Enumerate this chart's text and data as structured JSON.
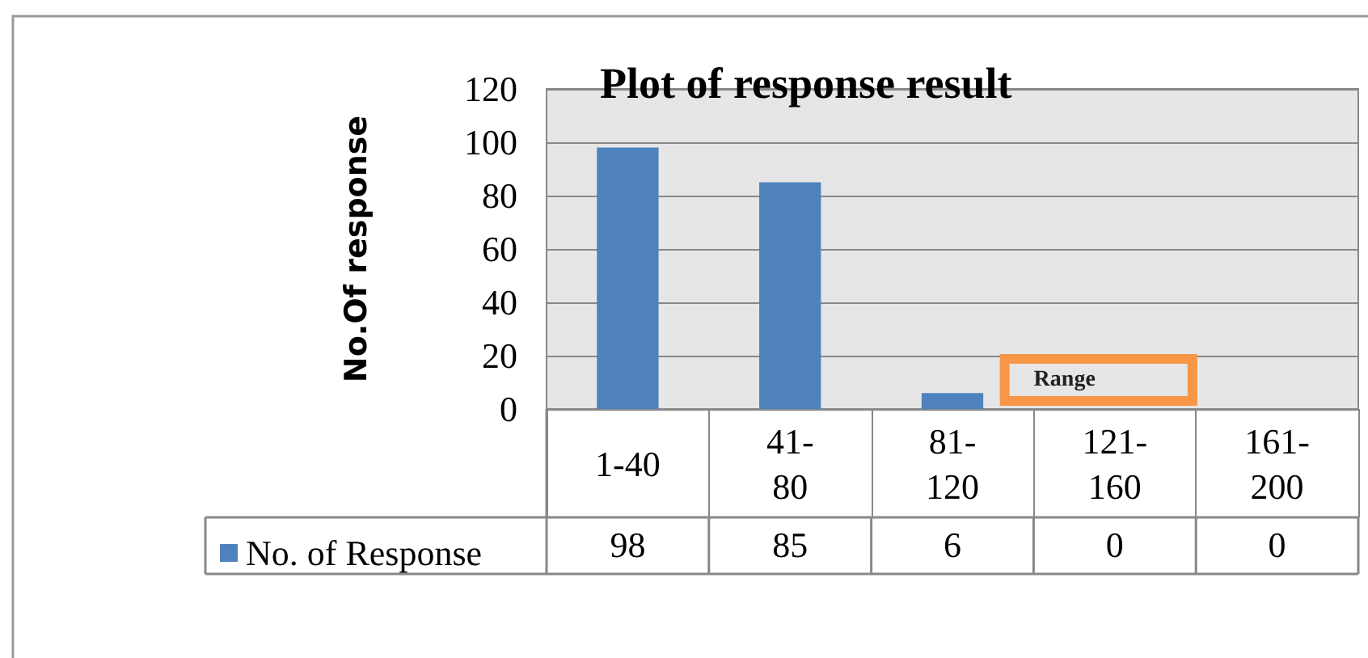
{
  "chart_data": {
    "type": "bar",
    "title": "Plot of response result",
    "xlabel": "Range",
    "ylabel": "No.Of response",
    "categories": [
      "1-40",
      "41-80",
      "81-120",
      "121-160",
      "161-200"
    ],
    "series": [
      {
        "name": "No. of Response",
        "color": "#4f81bd",
        "values": [
          98,
          85,
          6,
          0,
          0
        ]
      }
    ],
    "ylim": [
      0,
      120
    ],
    "yticks": [
      0,
      20,
      40,
      60,
      80,
      100,
      120
    ],
    "grid": "y",
    "legend": "bottom left",
    "data_labels": true
  }
}
